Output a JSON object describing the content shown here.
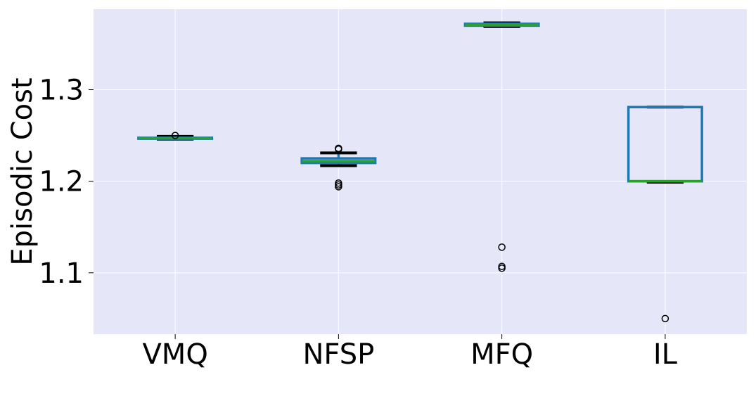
{
  "chart_data": {
    "type": "box",
    "title": "",
    "xlabel": "",
    "ylabel": "Episodic Cost",
    "categories": [
      "VMQ",
      "NFSP",
      "MFQ",
      "IL"
    ],
    "ylim": [
      1.033,
      1.388
    ],
    "yticks": [
      1.1,
      1.2,
      1.3
    ],
    "ytick_labels": [
      "1.1",
      "1.2",
      "1.3"
    ],
    "grid": true,
    "background_color": "#e5e6f8",
    "colors": {
      "box": "#1f77b4",
      "median": "#2ca02c",
      "whisker_cap": "#000000",
      "grid": "#ffffff"
    },
    "boxes": [
      {
        "category": "VMQ",
        "whisker_low": 1.246,
        "q1": 1.2465,
        "median": 1.247,
        "q3": 1.2475,
        "whisker_high": 1.249,
        "outliers": [
          1.25
        ]
      },
      {
        "category": "NFSP",
        "whisker_low": 1.217,
        "q1": 1.22,
        "median": 1.222,
        "q3": 1.225,
        "whisker_high": 1.231,
        "outliers": [
          1.236,
          1.235,
          1.198,
          1.196,
          1.194
        ]
      },
      {
        "category": "MFQ",
        "whisker_low": 1.369,
        "q1": 1.37,
        "median": 1.371,
        "q3": 1.372,
        "whisker_high": 1.373,
        "outliers": [
          1.128,
          1.107,
          1.105
        ]
      },
      {
        "category": "IL",
        "whisker_low": 1.199,
        "q1": 1.2,
        "median": 1.2,
        "q3": 1.281,
        "whisker_high": 1.281,
        "outliers": [
          1.05
        ]
      }
    ]
  }
}
